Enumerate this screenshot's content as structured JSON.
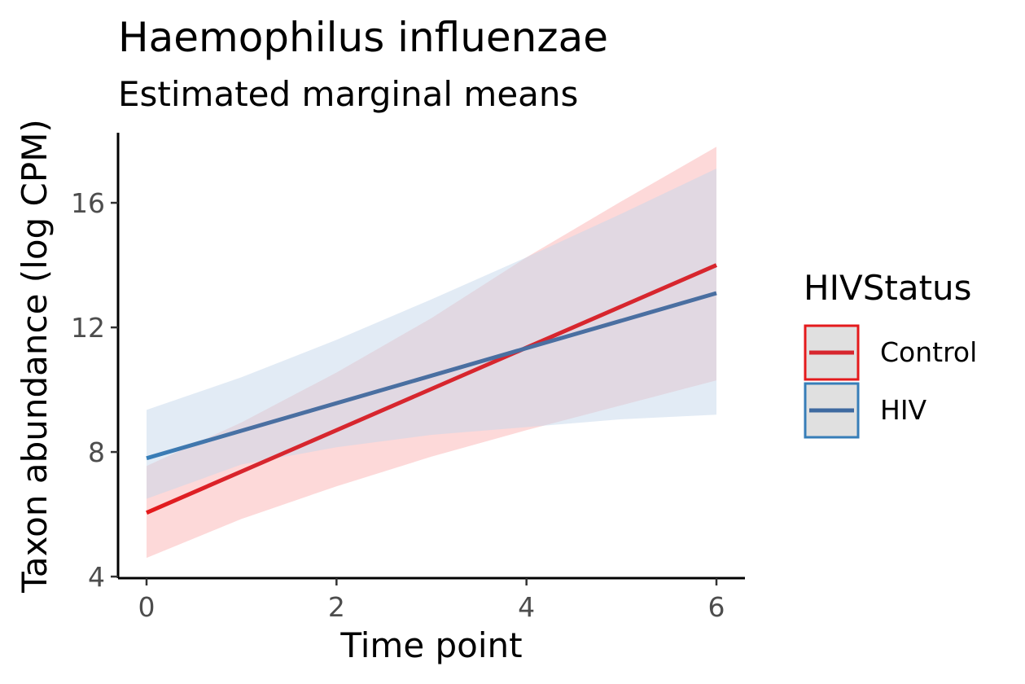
{
  "chart_data": {
    "type": "line",
    "title": "Haemophilus influenzae",
    "subtitle": "Estimated marginal means",
    "xlabel": "Time point",
    "ylabel": "Taxon abundance (log CPM)",
    "xlim": [
      -0.3,
      6.3
    ],
    "ylim": [
      3.95,
      18.25
    ],
    "x_ticks": [
      0,
      2,
      4,
      6
    ],
    "y_ticks": [
      4,
      8,
      12,
      16
    ],
    "grid": false,
    "legend": {
      "title": "HIVStatus",
      "position": "right"
    },
    "series": [
      {
        "name": "Control",
        "color": "#d7262e",
        "line_start_color": "#e41a1c",
        "fill_color": "#fbb4b4",
        "x": [
          0,
          6
        ],
        "y": [
          6.05,
          14.0
        ],
        "ci_x": [
          0,
          1,
          2,
          3,
          4,
          5,
          6
        ],
        "ci_lower": [
          4.6,
          5.85,
          6.9,
          7.85,
          8.7,
          9.5,
          10.3
        ],
        "ci_upper": [
          7.55,
          8.95,
          10.55,
          12.3,
          14.25,
          16.05,
          17.8
        ]
      },
      {
        "name": "HIV",
        "color": "#4a6fa1",
        "line_start_color": "#377eb8",
        "fill_color": "#c5d8ec",
        "x": [
          0,
          6
        ],
        "y": [
          7.8,
          13.1
        ],
        "ci_x": [
          0,
          1,
          2,
          3,
          4,
          5,
          6
        ],
        "ci_lower": [
          6.5,
          7.6,
          8.15,
          8.55,
          8.8,
          9.05,
          9.2
        ],
        "ci_upper": [
          9.35,
          10.4,
          11.6,
          12.9,
          14.25,
          15.65,
          17.1
        ]
      }
    ]
  }
}
